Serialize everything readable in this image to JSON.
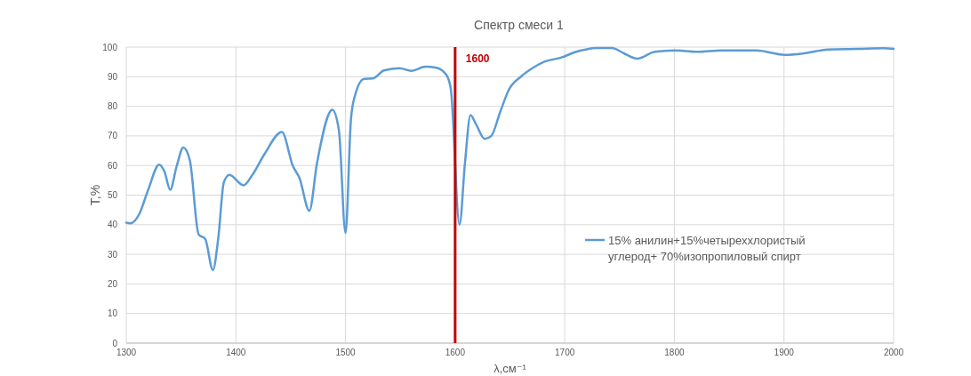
{
  "chart_data": {
    "type": "line",
    "title": "Спектр смеси 1",
    "xlabel": "λ,см⁻¹",
    "ylabel": "T,%",
    "x": [
      1300,
      1304,
      1312,
      1320,
      1330,
      1335,
      1340,
      1346,
      1352,
      1358,
      1366,
      1372,
      1379,
      1384,
      1389,
      1394,
      1407,
      1415,
      1426,
      1442,
      1452,
      1458,
      1467,
      1474,
      1488,
      1494,
      1500,
      1505,
      1508,
      1517,
      1525,
      1535,
      1549,
      1560,
      1573,
      1583,
      1592,
      1596,
      1604,
      1609,
      1614,
      1619,
      1627,
      1633,
      1641,
      1649,
      1660,
      1671,
      1681,
      1697,
      1711,
      1719,
      1729,
      1743,
      1754,
      1766,
      1782,
      1800,
      1821,
      1843,
      1875,
      1901,
      1918,
      1940,
      1967,
      1991,
      2000
    ],
    "series": [
      {
        "name": "15% анилин+15%четыреххлористый углерод+ 70%изопропиловый спирт",
        "color": "#5b9bd5",
        "values": [
          40.7,
          40.5,
          43.7,
          51.8,
          60.3,
          57.8,
          51.8,
          59.8,
          66.1,
          61.8,
          36.7,
          35.2,
          24.7,
          35.7,
          54.3,
          56.8,
          53.3,
          56.8,
          63.8,
          71.3,
          59.8,
          55.8,
          44.7,
          60.8,
          78.8,
          71.8,
          37.2,
          75.8,
          82.8,
          89.3,
          89.4,
          92.1,
          92.9,
          92,
          93.4,
          93,
          90.6,
          86,
          40,
          61,
          77,
          74,
          69,
          70,
          78,
          85.6,
          90,
          93,
          95,
          96.5,
          98.5,
          99.2,
          99.7,
          99.7,
          97.9,
          96.1,
          98.4,
          98.9,
          98.4,
          98.9,
          98.9,
          97.4,
          97.9,
          99.2,
          99.4,
          99.6,
          99.4
        ]
      }
    ],
    "xlim": [
      1300,
      2000
    ],
    "xticks": [
      1300,
      1400,
      1500,
      1600,
      1700,
      1800,
      1900,
      2000
    ],
    "ylim": [
      0,
      100
    ],
    "yticks": [
      0,
      10,
      20,
      30,
      40,
      50,
      60,
      70,
      80,
      90,
      100
    ],
    "grid": true,
    "legend": "right",
    "marker": "none",
    "line_style": "solid",
    "ref_lines": [
      {
        "axis": "x",
        "value": 1600,
        "label": "1600",
        "color": "#c00000"
      }
    ]
  }
}
